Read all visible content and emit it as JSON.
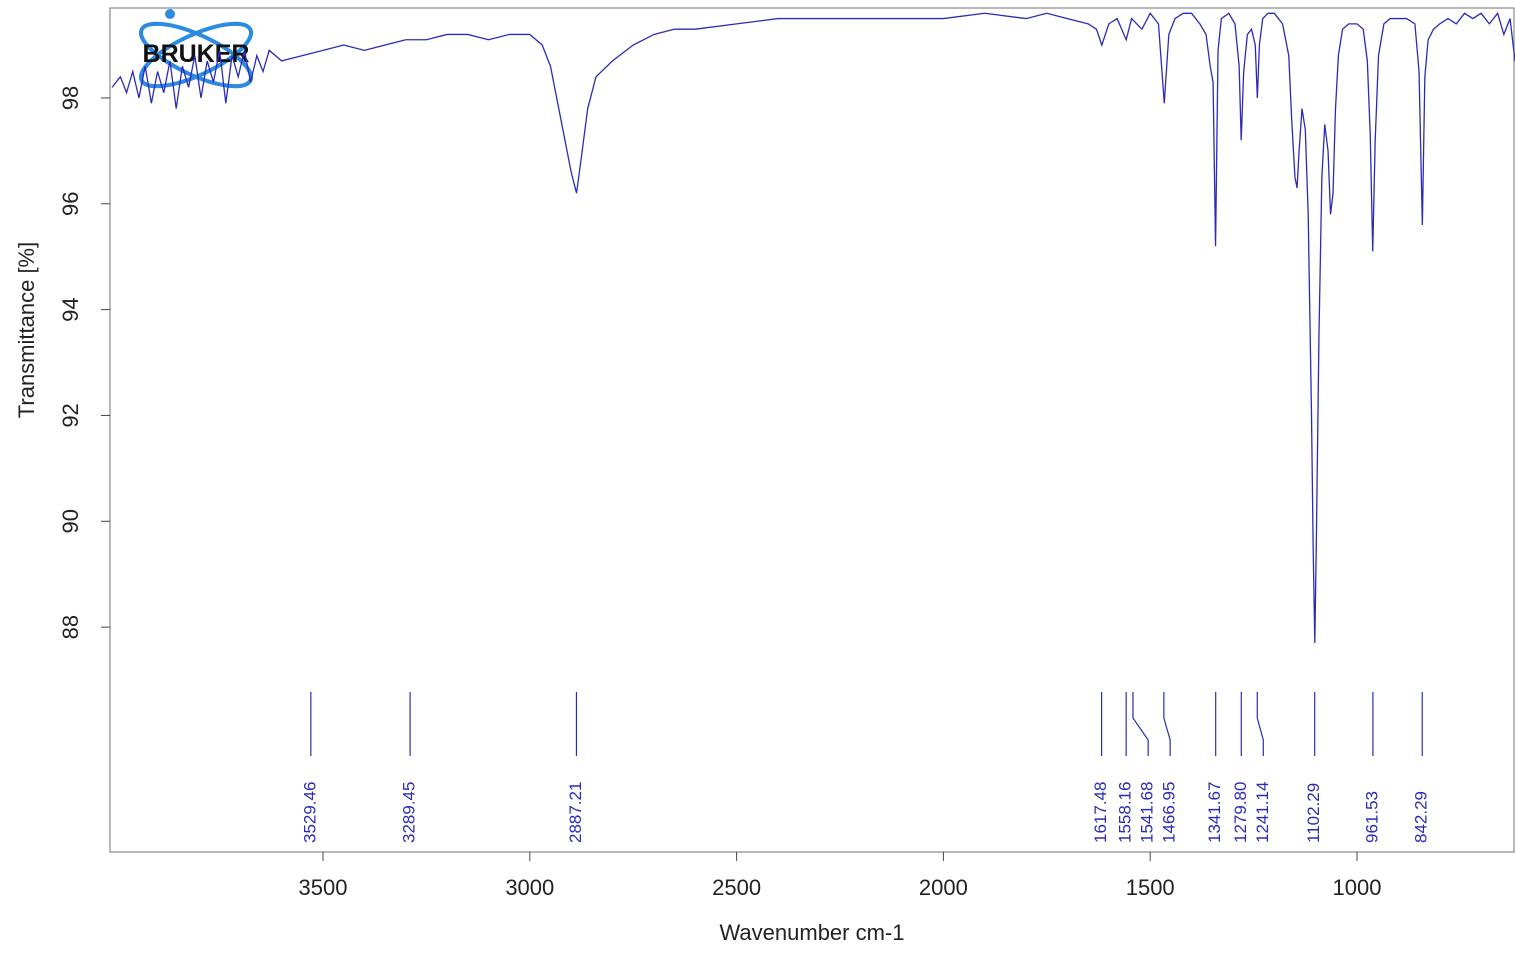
{
  "chart_data": {
    "type": "line",
    "logo": "BRUKER",
    "xlabel": "Wavenumber cm-1",
    "ylabel": "Transmittance [%]",
    "color": "#2b2bb8",
    "xlim": [
      4015,
      618
    ],
    "ylim": [
      83.75,
      99.7
    ],
    "xticks": [
      3500,
      3000,
      2500,
      2000,
      1500,
      1000
    ],
    "yticks": [
      88,
      90,
      92,
      94,
      96,
      98
    ],
    "x": [
      4010,
      3990,
      3975,
      3960,
      3945,
      3930,
      3915,
      3900,
      3885,
      3870,
      3855,
      3840,
      3825,
      3810,
      3795,
      3780,
      3765,
      3750,
      3735,
      3720,
      3705,
      3690,
      3675,
      3660,
      3645,
      3630,
      3600,
      3550,
      3500,
      3450,
      3400,
      3350,
      3300,
      3250,
      3200,
      3150,
      3100,
      3050,
      3000,
      2970,
      2950,
      2930,
      2910,
      2900,
      2887,
      2875,
      2860,
      2840,
      2800,
      2750,
      2700,
      2650,
      2600,
      2500,
      2400,
      2300,
      2200,
      2100,
      2000,
      1900,
      1800,
      1750,
      1700,
      1650,
      1630,
      1617,
      1600,
      1580,
      1558,
      1545,
      1520,
      1500,
      1480,
      1466,
      1455,
      1440,
      1420,
      1400,
      1380,
      1365,
      1355,
      1348,
      1342,
      1336,
      1328,
      1310,
      1295,
      1285,
      1280,
      1274,
      1265,
      1255,
      1246,
      1241,
      1236,
      1228,
      1215,
      1200,
      1180,
      1165,
      1158,
      1150,
      1145,
      1140,
      1133,
      1125,
      1118,
      1110,
      1106,
      1102,
      1098,
      1092,
      1085,
      1078,
      1070,
      1064,
      1058,
      1052,
      1045,
      1035,
      1020,
      1000,
      985,
      975,
      968,
      962,
      956,
      948,
      935,
      920,
      900,
      880,
      860,
      850,
      842,
      836,
      828,
      815,
      800,
      780,
      760,
      740,
      720,
      700,
      680,
      660,
      645,
      630,
      618
    ],
    "values": [
      98.2,
      98.4,
      98.1,
      98.5,
      98.0,
      98.6,
      97.9,
      98.5,
      98.1,
      98.7,
      97.8,
      98.6,
      98.2,
      98.8,
      98.0,
      98.7,
      98.3,
      98.9,
      97.9,
      98.8,
      98.4,
      98.9,
      98.3,
      98.8,
      98.5,
      98.9,
      98.7,
      98.8,
      98.9,
      99.0,
      98.9,
      99.0,
      99.1,
      99.1,
      99.2,
      99.2,
      99.1,
      99.2,
      99.2,
      99.0,
      98.6,
      97.8,
      97.0,
      96.6,
      96.2,
      96.9,
      97.8,
      98.4,
      98.7,
      99.0,
      99.2,
      99.3,
      99.3,
      99.4,
      99.5,
      99.5,
      99.5,
      99.5,
      99.5,
      99.6,
      99.5,
      99.6,
      99.5,
      99.4,
      99.3,
      99.0,
      99.4,
      99.5,
      99.1,
      99.5,
      99.3,
      99.6,
      99.4,
      97.9,
      99.2,
      99.5,
      99.6,
      99.6,
      99.4,
      99.2,
      98.6,
      98.3,
      95.2,
      98.9,
      99.5,
      99.6,
      99.4,
      98.6,
      97.2,
      98.5,
      99.2,
      99.3,
      99.0,
      98.0,
      99.0,
      99.5,
      99.6,
      99.6,
      99.4,
      98.8,
      97.6,
      96.5,
      96.3,
      97.0,
      97.8,
      97.4,
      95.8,
      92.0,
      89.5,
      87.7,
      89.8,
      93.5,
      96.5,
      97.5,
      97.0,
      95.8,
      96.2,
      97.8,
      98.8,
      99.3,
      99.4,
      99.4,
      99.3,
      98.7,
      97.3,
      95.1,
      97.2,
      98.8,
      99.4,
      99.5,
      99.5,
      99.5,
      99.4,
      98.5,
      95.6,
      98.4,
      99.1,
      99.3,
      99.4,
      99.5,
      99.4,
      99.6,
      99.5,
      99.6,
      99.4,
      99.6,
      99.2,
      99.5,
      98.7
    ],
    "peaks": [
      {
        "value": 3529.46,
        "label": "3529.46"
      },
      {
        "value": 3289.45,
        "label": "3289.45"
      },
      {
        "value": 2887.21,
        "label": "2887.21"
      },
      {
        "value": 1617.48,
        "label": "1617.48"
      },
      {
        "value": 1558.16,
        "label": "1558.16"
      },
      {
        "value": 1541.68,
        "label": "1541.68"
      },
      {
        "value": 1466.95,
        "label": "1466.95"
      },
      {
        "value": 1341.67,
        "label": "1341.67"
      },
      {
        "value": 1279.8,
        "label": "1279.80"
      },
      {
        "value": 1241.14,
        "label": "1241.14"
      },
      {
        "value": 1102.29,
        "label": "1102.29"
      },
      {
        "value": 961.53,
        "label": "961.53"
      },
      {
        "value": 842.29,
        "label": "842.29"
      }
    ]
  }
}
